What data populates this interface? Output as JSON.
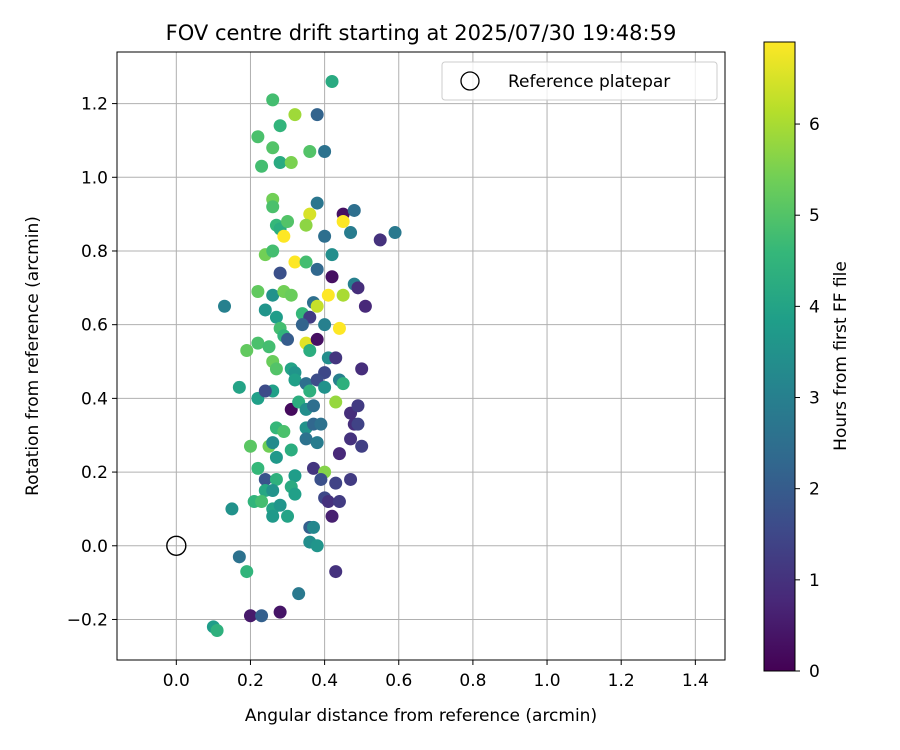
{
  "chart_data": {
    "type": "scatter",
    "title": "FOV centre drift starting at 2025/07/30 19:48:59",
    "xlabel": "Angular distance from reference (arcmin)",
    "ylabel": "Rotation from reference (arcmin)",
    "xlim": [
      -0.16,
      1.48
    ],
    "ylim": [
      -0.31,
      1.34
    ],
    "xticks": [
      0.0,
      0.2,
      0.4,
      0.6,
      0.8,
      1.0,
      1.2,
      1.4
    ],
    "xtick_labels": [
      "0.0",
      "0.2",
      "0.4",
      "0.6",
      "0.8",
      "1.0",
      "1.2",
      "1.4"
    ],
    "yticks": [
      -0.2,
      0.0,
      0.2,
      0.4,
      0.6,
      0.8,
      1.0,
      1.2
    ],
    "ytick_labels": [
      "−0.2",
      "0.0",
      "0.2",
      "0.4",
      "0.6",
      "0.8",
      "1.0",
      "1.2"
    ],
    "grid": true,
    "legend": {
      "placement": "top-right",
      "entries": [
        {
          "label": "Reference platepar",
          "marker": "open-circle"
        }
      ]
    },
    "reference_point": {
      "x": 0.0,
      "y": 0.0
    },
    "colorbar": {
      "label": "Hours from first FF file",
      "colormap": "viridis",
      "range": [
        0,
        6.9
      ],
      "ticks": [
        0,
        1,
        2,
        3,
        4,
        5,
        6
      ],
      "tick_labels": [
        "0",
        "1",
        "2",
        "3",
        "4",
        "5",
        "6"
      ],
      "colors": [
        "#440154",
        "#482878",
        "#3e4989",
        "#31688e",
        "#26828e",
        "#1f9e89",
        "#35b779",
        "#6ece58",
        "#b5de2b",
        "#fde725"
      ]
    },
    "points": [
      {
        "x": 0.42,
        "y": 1.26,
        "h": 4.2
      },
      {
        "x": 0.26,
        "y": 1.21,
        "h": 4.8
      },
      {
        "x": 0.32,
        "y": 1.17,
        "h": 5.9
      },
      {
        "x": 0.38,
        "y": 1.17,
        "h": 2.2
      },
      {
        "x": 0.22,
        "y": 1.11,
        "h": 4.9
      },
      {
        "x": 0.28,
        "y": 1.14,
        "h": 4.5
      },
      {
        "x": 0.26,
        "y": 1.08,
        "h": 5.0
      },
      {
        "x": 0.36,
        "y": 1.07,
        "h": 5.0
      },
      {
        "x": 0.4,
        "y": 1.07,
        "h": 2.6
      },
      {
        "x": 0.23,
        "y": 1.03,
        "h": 4.8
      },
      {
        "x": 0.28,
        "y": 1.04,
        "h": 4.2
      },
      {
        "x": 0.31,
        "y": 1.04,
        "h": 5.5
      },
      {
        "x": 0.26,
        "y": 0.94,
        "h": 5.4
      },
      {
        "x": 0.26,
        "y": 0.92,
        "h": 4.9
      },
      {
        "x": 0.38,
        "y": 0.93,
        "h": 2.7
      },
      {
        "x": 0.36,
        "y": 0.9,
        "h": 6.5
      },
      {
        "x": 0.45,
        "y": 0.9,
        "h": 0.3
      },
      {
        "x": 0.48,
        "y": 0.91,
        "h": 2.5
      },
      {
        "x": 0.27,
        "y": 0.87,
        "h": 4.6
      },
      {
        "x": 0.28,
        "y": 0.86,
        "h": 4.3
      },
      {
        "x": 0.3,
        "y": 0.88,
        "h": 5.0
      },
      {
        "x": 0.35,
        "y": 0.87,
        "h": 5.7
      },
      {
        "x": 0.45,
        "y": 0.88,
        "h": 6.9
      },
      {
        "x": 0.29,
        "y": 0.84,
        "h": 6.9
      },
      {
        "x": 0.4,
        "y": 0.84,
        "h": 2.5
      },
      {
        "x": 0.47,
        "y": 0.85,
        "h": 2.9
      },
      {
        "x": 0.55,
        "y": 0.83,
        "h": 1.0
      },
      {
        "x": 0.59,
        "y": 0.85,
        "h": 2.8
      },
      {
        "x": 0.24,
        "y": 0.79,
        "h": 5.4
      },
      {
        "x": 0.26,
        "y": 0.8,
        "h": 4.8
      },
      {
        "x": 0.32,
        "y": 0.77,
        "h": 6.9
      },
      {
        "x": 0.35,
        "y": 0.77,
        "h": 4.8
      },
      {
        "x": 0.42,
        "y": 0.79,
        "h": 3.4
      },
      {
        "x": 0.28,
        "y": 0.74,
        "h": 1.7
      },
      {
        "x": 0.38,
        "y": 0.75,
        "h": 2.3
      },
      {
        "x": 0.42,
        "y": 0.73,
        "h": 0.3
      },
      {
        "x": 0.48,
        "y": 0.71,
        "h": 3.0
      },
      {
        "x": 0.49,
        "y": 0.7,
        "h": 0.9
      },
      {
        "x": 0.22,
        "y": 0.69,
        "h": 5.2
      },
      {
        "x": 0.26,
        "y": 0.68,
        "h": 3.5
      },
      {
        "x": 0.29,
        "y": 0.69,
        "h": 5.4
      },
      {
        "x": 0.31,
        "y": 0.68,
        "h": 5.3
      },
      {
        "x": 0.37,
        "y": 0.66,
        "h": 2.5
      },
      {
        "x": 0.38,
        "y": 0.65,
        "h": 6.3
      },
      {
        "x": 0.41,
        "y": 0.68,
        "h": 6.9
      },
      {
        "x": 0.45,
        "y": 0.68,
        "h": 6.0
      },
      {
        "x": 0.13,
        "y": 0.65,
        "h": 3.0
      },
      {
        "x": 0.24,
        "y": 0.64,
        "h": 3.6
      },
      {
        "x": 0.27,
        "y": 0.62,
        "h": 3.8
      },
      {
        "x": 0.34,
        "y": 0.63,
        "h": 4.6
      },
      {
        "x": 0.36,
        "y": 0.62,
        "h": 1.2
      },
      {
        "x": 0.51,
        "y": 0.65,
        "h": 0.8
      },
      {
        "x": 0.28,
        "y": 0.59,
        "h": 4.8
      },
      {
        "x": 0.34,
        "y": 0.6,
        "h": 2.2
      },
      {
        "x": 0.4,
        "y": 0.6,
        "h": 3.0
      },
      {
        "x": 0.44,
        "y": 0.59,
        "h": 6.9
      },
      {
        "x": 0.29,
        "y": 0.57,
        "h": 4.5
      },
      {
        "x": 0.3,
        "y": 0.56,
        "h": 2.0
      },
      {
        "x": 0.35,
        "y": 0.55,
        "h": 6.6
      },
      {
        "x": 0.38,
        "y": 0.56,
        "h": 0.3
      },
      {
        "x": 0.19,
        "y": 0.53,
        "h": 5.2
      },
      {
        "x": 0.22,
        "y": 0.55,
        "h": 4.9
      },
      {
        "x": 0.25,
        "y": 0.54,
        "h": 4.8
      },
      {
        "x": 0.36,
        "y": 0.53,
        "h": 4.3
      },
      {
        "x": 0.41,
        "y": 0.51,
        "h": 3.4
      },
      {
        "x": 0.43,
        "y": 0.51,
        "h": 1.1
      },
      {
        "x": 0.26,
        "y": 0.5,
        "h": 5.3
      },
      {
        "x": 0.27,
        "y": 0.48,
        "h": 5.0
      },
      {
        "x": 0.31,
        "y": 0.48,
        "h": 4.0
      },
      {
        "x": 0.32,
        "y": 0.47,
        "h": 3.6
      },
      {
        "x": 0.4,
        "y": 0.47,
        "h": 1.5
      },
      {
        "x": 0.5,
        "y": 0.48,
        "h": 0.9
      },
      {
        "x": 0.32,
        "y": 0.45,
        "h": 3.9
      },
      {
        "x": 0.35,
        "y": 0.44,
        "h": 2.5
      },
      {
        "x": 0.38,
        "y": 0.45,
        "h": 1.6
      },
      {
        "x": 0.44,
        "y": 0.45,
        "h": 3.0
      },
      {
        "x": 0.45,
        "y": 0.44,
        "h": 4.4
      },
      {
        "x": 0.17,
        "y": 0.43,
        "h": 4.0
      },
      {
        "x": 0.26,
        "y": 0.42,
        "h": 3.9
      },
      {
        "x": 0.36,
        "y": 0.42,
        "h": 4.4
      },
      {
        "x": 0.4,
        "y": 0.43,
        "h": 3.5
      },
      {
        "x": 0.22,
        "y": 0.4,
        "h": 3.9
      },
      {
        "x": 0.24,
        "y": 0.42,
        "h": 1.6
      },
      {
        "x": 0.31,
        "y": 0.37,
        "h": 0.2
      },
      {
        "x": 0.33,
        "y": 0.39,
        "h": 4.3
      },
      {
        "x": 0.35,
        "y": 0.37,
        "h": 3.4
      },
      {
        "x": 0.37,
        "y": 0.38,
        "h": 2.5
      },
      {
        "x": 0.43,
        "y": 0.39,
        "h": 5.8
      },
      {
        "x": 0.47,
        "y": 0.36,
        "h": 0.9
      },
      {
        "x": 0.49,
        "y": 0.38,
        "h": 1.2
      },
      {
        "x": 0.27,
        "y": 0.32,
        "h": 4.6
      },
      {
        "x": 0.29,
        "y": 0.31,
        "h": 4.9
      },
      {
        "x": 0.35,
        "y": 0.32,
        "h": 3.5
      },
      {
        "x": 0.37,
        "y": 0.33,
        "h": 2.3
      },
      {
        "x": 0.39,
        "y": 0.33,
        "h": 2.6
      },
      {
        "x": 0.48,
        "y": 0.33,
        "h": 0.9
      },
      {
        "x": 0.49,
        "y": 0.33,
        "h": 1.4
      },
      {
        "x": 0.35,
        "y": 0.29,
        "h": 2.6
      },
      {
        "x": 0.38,
        "y": 0.28,
        "h": 2.9
      },
      {
        "x": 0.47,
        "y": 0.29,
        "h": 1.0
      },
      {
        "x": 0.5,
        "y": 0.27,
        "h": 1.3
      },
      {
        "x": 0.2,
        "y": 0.27,
        "h": 5.1
      },
      {
        "x": 0.25,
        "y": 0.27,
        "h": 5.4
      },
      {
        "x": 0.26,
        "y": 0.28,
        "h": 3.3
      },
      {
        "x": 0.31,
        "y": 0.26,
        "h": 4.3
      },
      {
        "x": 0.44,
        "y": 0.25,
        "h": 0.8
      },
      {
        "x": 0.27,
        "y": 0.24,
        "h": 3.7
      },
      {
        "x": 0.22,
        "y": 0.21,
        "h": 4.6
      },
      {
        "x": 0.37,
        "y": 0.21,
        "h": 1.1
      },
      {
        "x": 0.4,
        "y": 0.2,
        "h": 5.6
      },
      {
        "x": 0.24,
        "y": 0.18,
        "h": 1.8
      },
      {
        "x": 0.27,
        "y": 0.18,
        "h": 4.4
      },
      {
        "x": 0.32,
        "y": 0.19,
        "h": 3.8
      },
      {
        "x": 0.39,
        "y": 0.18,
        "h": 1.7
      },
      {
        "x": 0.43,
        "y": 0.17,
        "h": 1.4
      },
      {
        "x": 0.47,
        "y": 0.18,
        "h": 1.2
      },
      {
        "x": 0.24,
        "y": 0.15,
        "h": 4.1
      },
      {
        "x": 0.26,
        "y": 0.15,
        "h": 3.5
      },
      {
        "x": 0.31,
        "y": 0.16,
        "h": 4.2
      },
      {
        "x": 0.32,
        "y": 0.14,
        "h": 3.9
      },
      {
        "x": 0.4,
        "y": 0.13,
        "h": 1.5
      },
      {
        "x": 0.41,
        "y": 0.12,
        "h": 1.0
      },
      {
        "x": 0.44,
        "y": 0.12,
        "h": 1.2
      },
      {
        "x": 0.21,
        "y": 0.12,
        "h": 4.5
      },
      {
        "x": 0.23,
        "y": 0.12,
        "h": 4.8
      },
      {
        "x": 0.26,
        "y": 0.1,
        "h": 4.0
      },
      {
        "x": 0.28,
        "y": 0.11,
        "h": 3.6
      },
      {
        "x": 0.15,
        "y": 0.1,
        "h": 3.5
      },
      {
        "x": 0.26,
        "y": 0.08,
        "h": 3.7
      },
      {
        "x": 0.3,
        "y": 0.08,
        "h": 4.0
      },
      {
        "x": 0.42,
        "y": 0.08,
        "h": 0.6
      },
      {
        "x": 0.36,
        "y": 0.05,
        "h": 2.1
      },
      {
        "x": 0.37,
        "y": 0.05,
        "h": 3.2
      },
      {
        "x": 0.36,
        "y": 0.01,
        "h": 3.4
      },
      {
        "x": 0.38,
        "y": 0.0,
        "h": 3.6
      },
      {
        "x": 0.17,
        "y": -0.03,
        "h": 2.6
      },
      {
        "x": 0.19,
        "y": -0.07,
        "h": 4.5
      },
      {
        "x": 0.43,
        "y": -0.07,
        "h": 1.0
      },
      {
        "x": 0.33,
        "y": -0.13,
        "h": 2.8
      },
      {
        "x": 0.28,
        "y": -0.18,
        "h": 0.4
      },
      {
        "x": 0.2,
        "y": -0.19,
        "h": 0.5
      },
      {
        "x": 0.23,
        "y": -0.19,
        "h": 2.1
      },
      {
        "x": 0.1,
        "y": -0.22,
        "h": 3.8
      },
      {
        "x": 0.11,
        "y": -0.23,
        "h": 4.4
      }
    ]
  }
}
